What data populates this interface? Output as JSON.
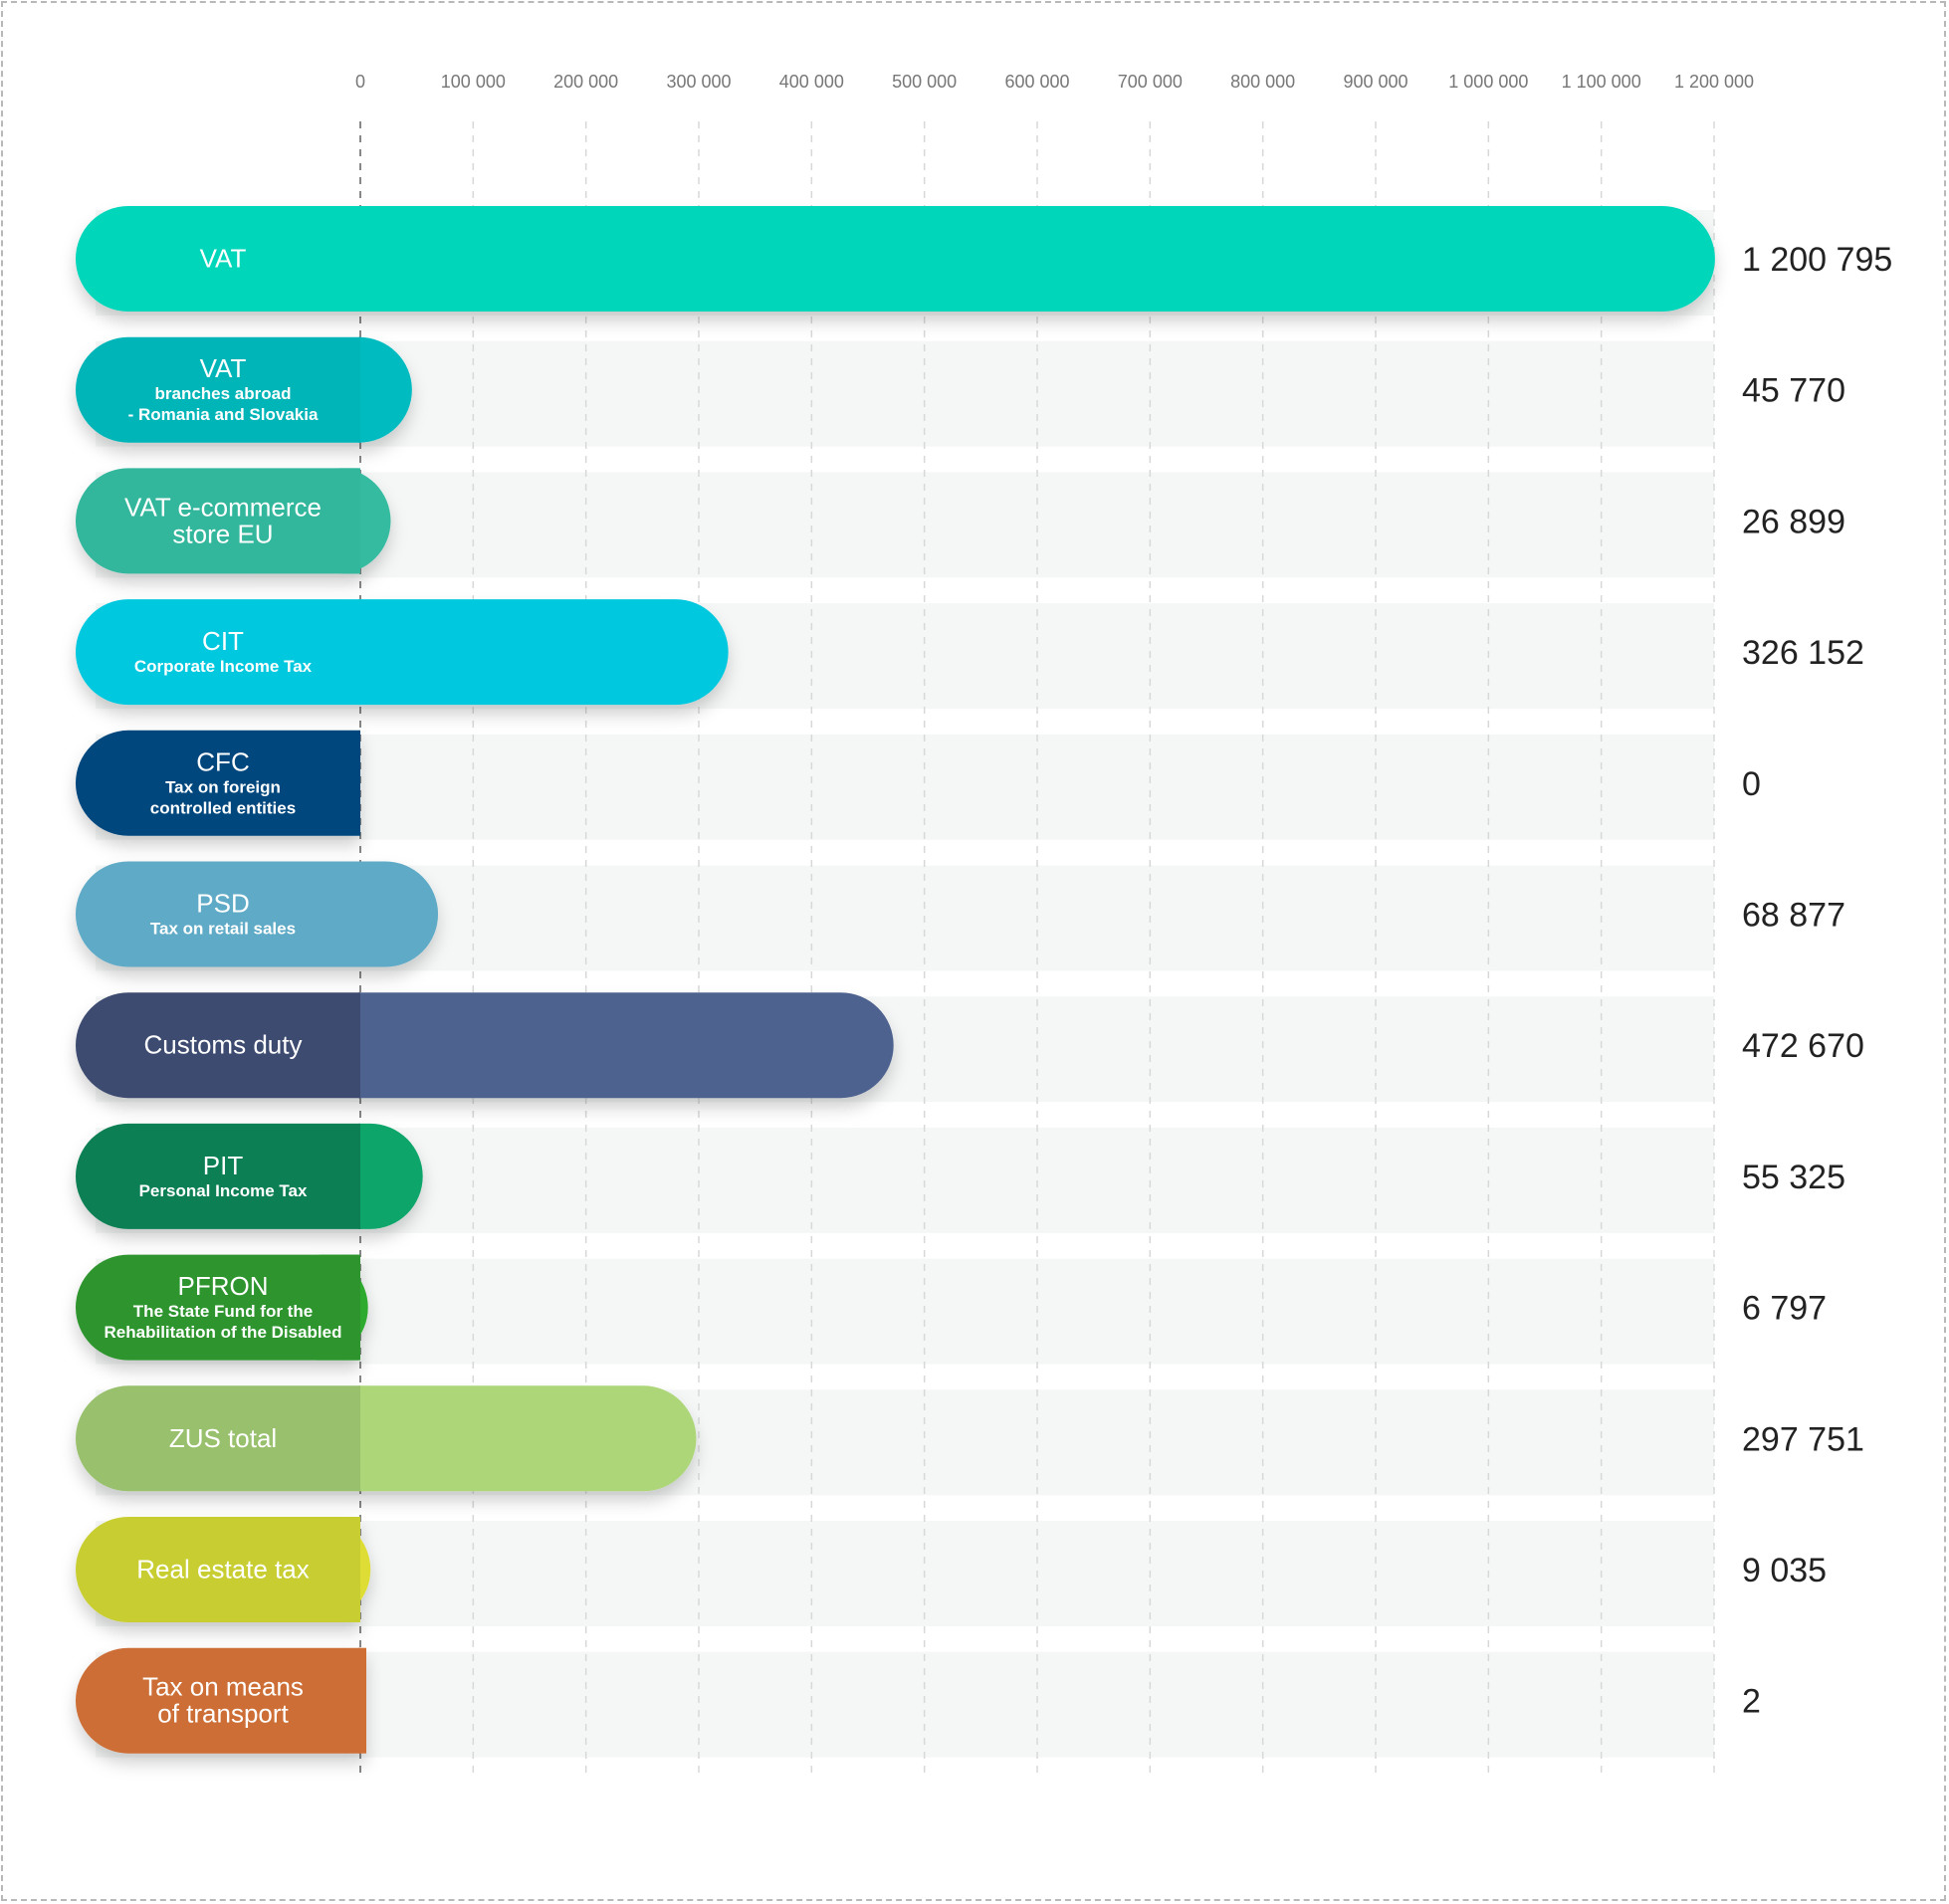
{
  "chart_data": {
    "type": "bar",
    "orientation": "horizontal",
    "title": "",
    "xlabel": "",
    "ylabel": "",
    "xlim": [
      0,
      1200000
    ],
    "ticks": [
      {
        "value": 0,
        "label": "0"
      },
      {
        "value": 100000,
        "label": "100 000"
      },
      {
        "value": 200000,
        "label": "200 000"
      },
      {
        "value": 300000,
        "label": "300 000"
      },
      {
        "value": 400000,
        "label": "400 000"
      },
      {
        "value": 500000,
        "label": "500 000"
      },
      {
        "value": 600000,
        "label": "600 000"
      },
      {
        "value": 700000,
        "label": "700 000"
      },
      {
        "value": 800000,
        "label": "800 000"
      },
      {
        "value": 900000,
        "label": "900 000"
      },
      {
        "value": 1000000,
        "label": "1 000 000"
      },
      {
        "value": 1100000,
        "label": "1 100 000"
      },
      {
        "value": 1200000,
        "label": "1 200 000"
      }
    ],
    "grid": true,
    "legend": "none",
    "categories": [
      {
        "name": "VAT",
        "sub": [],
        "value": 1200795,
        "value_label": "1 200 795",
        "color": "#00d6b9",
        "label_color": "#00d6b9"
      },
      {
        "name": "VAT",
        "sub": [
          "branches abroad",
          "- Romania and Slovakia"
        ],
        "value": 45770,
        "value_label": "45 770",
        "color": "#00bcc0",
        "label_color": "#00b5b8"
      },
      {
        "name": "VAT e-commerce",
        "sub": [],
        "name2": "store EU",
        "value": 26899,
        "value_label": "26 899",
        "color": "#34bba0",
        "label_color": "#30b69c"
      },
      {
        "name": "CIT",
        "sub": [
          "Corporate Income Tax"
        ],
        "value": 326152,
        "value_label": "326 152",
        "color": "#00c8de",
        "label_color": "#00c8de"
      },
      {
        "name": "CFC",
        "sub": [
          "Tax on foreign",
          "controlled entities"
        ],
        "value": 0,
        "value_label": "0",
        "color": "#00467e",
        "label_color": "#00467e"
      },
      {
        "name": "PSD",
        "sub": [
          "Tax on retail sales"
        ],
        "value": 68877,
        "value_label": "68 877",
        "color": "#5eaac6",
        "label_color": "#5eaac6"
      },
      {
        "name": "Customs duty",
        "sub": [],
        "value": 472670,
        "value_label": "472 670",
        "color": "#4d628f",
        "label_color": "#3d4c70"
      },
      {
        "name": "PIT",
        "sub": [
          "Personal Income Tax"
        ],
        "value": 55325,
        "value_label": "55 325",
        "color": "#0fa56b",
        "label_color": "#0e7f55"
      },
      {
        "name": "PFRON",
        "sub": [
          "The State Fund for the",
          "Rehabilitation of the Disabled"
        ],
        "value": 6797,
        "value_label": "6 797",
        "color": "#2fab2f",
        "label_color": "#2e952d"
      },
      {
        "name": "ZUS total",
        "sub": [],
        "value": 297751,
        "value_label": "297 751",
        "color": "#acd678",
        "label_color": "#98c06d"
      },
      {
        "name": "Real estate tax",
        "sub": [],
        "value": 9035,
        "value_label": "9 035",
        "color": "#dedd35",
        "label_color": "#c8ce30"
      },
      {
        "name": "Tax on means",
        "sub": [],
        "name2": "of transport",
        "value": 2,
        "value_label": "2",
        "color": "#cf6e34",
        "label_color": "#cc6e36"
      }
    ]
  }
}
